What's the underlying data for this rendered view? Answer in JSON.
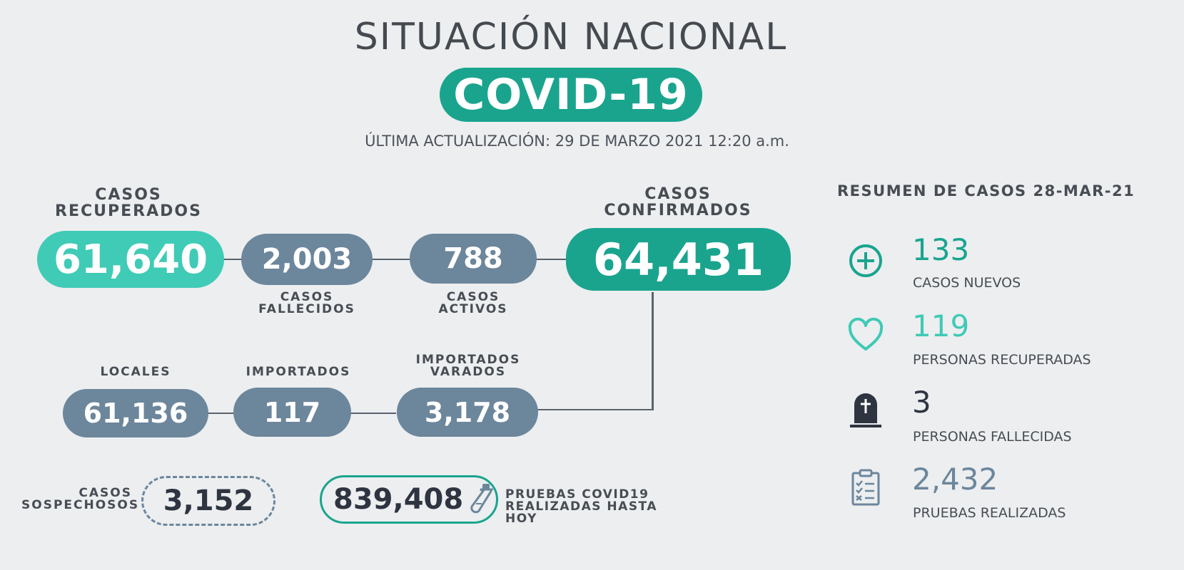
{
  "header": {
    "title": "SITUACIÓN NACIONAL",
    "badge": "COVID-19",
    "updated": "ÚLTIMA ACTUALIZACIÓN: 29 DE MARZO 2021 12:20 a.m."
  },
  "recuperados": {
    "label_line1": "CASOS",
    "label_line2": "RECUPERADOS",
    "value": "61,640"
  },
  "fallecidos": {
    "label_line1": "CASOS",
    "label_line2": "FALLECIDOS",
    "value": "2,003"
  },
  "activos": {
    "label_line1": "CASOS",
    "label_line2": "ACTIVOS",
    "value": "788"
  },
  "confirmados": {
    "label_line1": "CASOS",
    "label_line2": "CONFIRMADOS",
    "value": "64,431"
  },
  "locales": {
    "label": "LOCALES",
    "value": "61,136"
  },
  "importados": {
    "label": "IMPORTADOS",
    "value": "117"
  },
  "varados": {
    "label_line1": "IMPORTADOS",
    "label_line2": "VARADOS",
    "value": "3,178"
  },
  "sospechosos": {
    "label_line1": "CASOS",
    "label_line2": "SOSPECHOSOS",
    "value": "3,152"
  },
  "pruebas_total": {
    "value": "839,408",
    "label_line1": "PRUEBAS COVID19",
    "label_line2": "REALIZADAS HASTA HOY",
    "icon": "test-tube-icon"
  },
  "summary": {
    "title": "RESUMEN DE CASOS 28-MAR-21",
    "items": [
      {
        "value": "133",
        "label": "CASOS NUEVOS",
        "icon": "plus-circle-icon",
        "color": "#1aa48e"
      },
      {
        "value": "119",
        "label": "PERSONAS RECUPERADAS",
        "icon": "heart-icon",
        "color": "#3fcab5"
      },
      {
        "value": "3",
        "label": "PERSONAS FALLECIDAS",
        "icon": "tombstone-icon",
        "color": "#2e3440"
      },
      {
        "value": "2,432",
        "label": "PRUEBAS REALIZADAS",
        "icon": "clipboard-icon",
        "color": "#6c869c"
      }
    ]
  },
  "colors": {
    "teal": "#1aa48e",
    "light_teal": "#40cbb6",
    "slate": "#6c869c",
    "background": "#eceef0"
  }
}
